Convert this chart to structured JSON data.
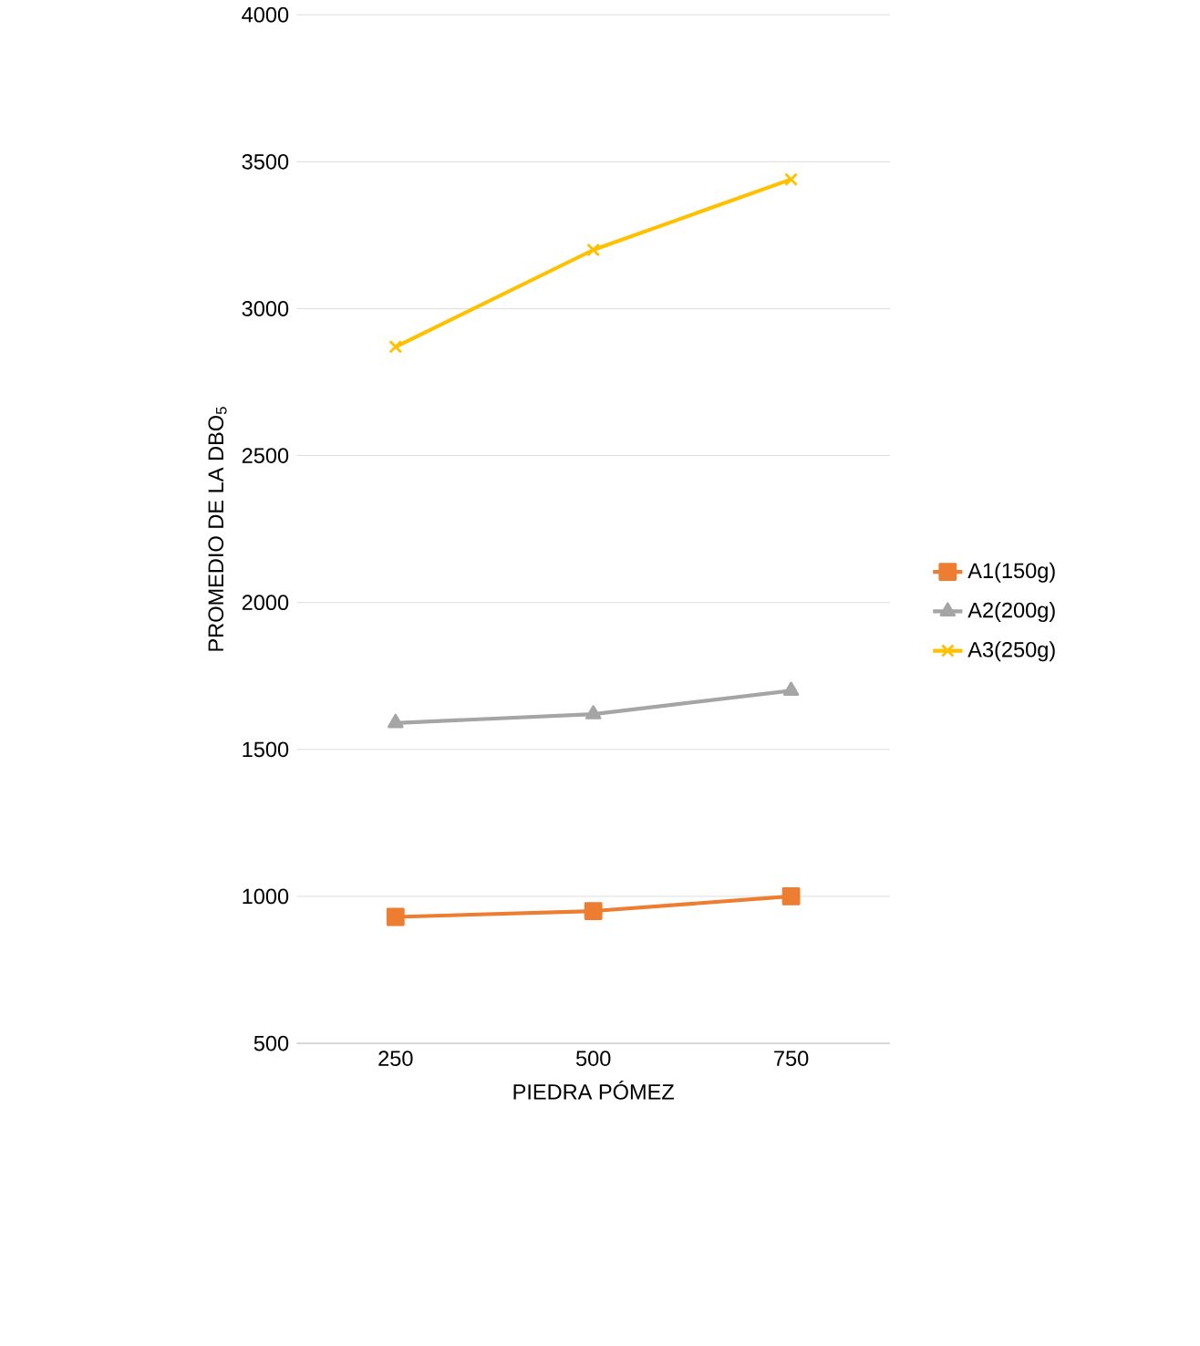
{
  "chart_data": {
    "type": "line",
    "xlabel": "PIEDRA PÓMEZ",
    "ylabel": "PROMEDIO DE LA DBO$_{5}$",
    "categories": [
      "250",
      "500",
      "750"
    ],
    "series": [
      {
        "name": "A1(150g)",
        "color": "#ed7d31",
        "marker": "square",
        "values": [
          930,
          950,
          1000
        ]
      },
      {
        "name": "A2(200g)",
        "color": "#a5a5a5",
        "marker": "triangle",
        "values": [
          1590,
          1620,
          1700
        ]
      },
      {
        "name": "A3(250g)",
        "color": "#ffc000",
        "marker": "cross",
        "values": [
          2870,
          3200,
          3440
        ]
      }
    ],
    "ylim": [
      500,
      4000
    ],
    "yticks": [
      500,
      1000,
      1500,
      2000,
      2500,
      3000,
      3500,
      4000
    ],
    "grid": "y",
    "legend": "right",
    "line_style": "solid"
  }
}
